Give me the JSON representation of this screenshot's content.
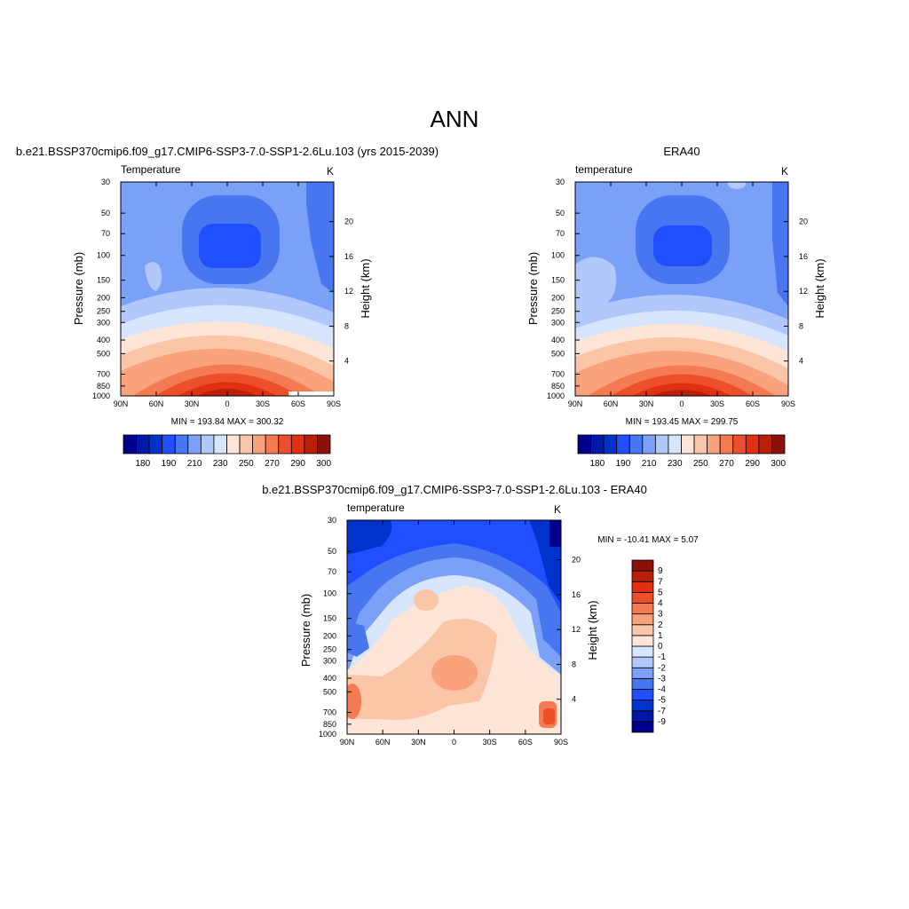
{
  "figure": {
    "title": "ANN"
  },
  "colors": {
    "temp_levels": [
      "#00008c",
      "#0018a8",
      "#0033cc",
      "#1f4fff",
      "#4876f0",
      "#7aa0f7",
      "#b0c8fb",
      "#d8e6fd",
      "#fde6d8",
      "#fbc6a8",
      "#f9a27c",
      "#f47a52",
      "#ee4f2b",
      "#e0300f",
      "#b8200a",
      "#8a1008"
    ],
    "diff_levels": [
      "#00008c",
      "#0018a8",
      "#0033cc",
      "#1f4fff",
      "#4876f0",
      "#7aa0f7",
      "#b0c8fb",
      "#d8e6fd",
      "#fde6d8",
      "#fbc6a8",
      "#f9a27c",
      "#f47a52",
      "#ee4f2b",
      "#e0300f",
      "#b8200a",
      "#8a1008"
    ]
  },
  "chart_data": [
    {
      "type": "heatmap",
      "id": "model",
      "title": "b.e21.BSSP370cmip6.f09_g17.CMIP6-SSP3-7.0-SSP1-2.6Lu.103 (yrs 2015-2039)",
      "variable_label": "Temperature",
      "units_label": "K",
      "xlabel": "",
      "ylabel": "Pressure (mb)",
      "y2label": "Height (km)",
      "x_ticks": [
        "90N",
        "60N",
        "30N",
        "0",
        "30S",
        "60S",
        "90S"
      ],
      "x_values": [
        90,
        60,
        30,
        0,
        -30,
        -60,
        -90
      ],
      "y_ticks": [
        30,
        50,
        70,
        100,
        150,
        200,
        250,
        300,
        400,
        500,
        700,
        850,
        1000
      ],
      "y2_ticks": [
        20,
        16,
        12,
        8,
        4
      ],
      "ylim": [
        30,
        1000
      ],
      "stats": "MIN = 193.84  MAX = 300.32",
      "min": 193.84,
      "max": 300.32,
      "colorbar_labels": [
        "180",
        "190",
        "210",
        "230",
        "250",
        "270",
        "290",
        "300"
      ],
      "colorbar_orientation": "horizontal"
    },
    {
      "type": "heatmap",
      "id": "obs",
      "title": "ERA40",
      "variable_label": "temperature",
      "units_label": "K",
      "xlabel": "",
      "ylabel": "Pressure (mb)",
      "y2label": "Height (km)",
      "x_ticks": [
        "90N",
        "60N",
        "30N",
        "0",
        "30S",
        "60S",
        "90S"
      ],
      "x_values": [
        90,
        60,
        30,
        0,
        -30,
        -60,
        -90
      ],
      "y_ticks": [
        30,
        50,
        70,
        100,
        150,
        200,
        250,
        300,
        400,
        500,
        700,
        850,
        1000
      ],
      "y2_ticks": [
        20,
        16,
        12,
        8,
        4
      ],
      "ylim": [
        30,
        1000
      ],
      "stats": "MIN = 193.45  MAX = 299.75",
      "min": 193.45,
      "max": 299.75,
      "colorbar_labels": [
        "180",
        "190",
        "210",
        "230",
        "250",
        "270",
        "290",
        "300"
      ],
      "colorbar_orientation": "horizontal"
    },
    {
      "type": "heatmap",
      "id": "diff",
      "title": "b.e21.BSSP370cmip6.f09_g17.CMIP6-SSP3-7.0-SSP1-2.6Lu.103 - ERA40",
      "variable_label": "temperature",
      "units_label": "K",
      "xlabel": "",
      "ylabel": "Pressure (mb)",
      "y2label": "Height (km)",
      "x_ticks": [
        "90N",
        "60N",
        "30N",
        "0",
        "30S",
        "60S",
        "90S"
      ],
      "x_values": [
        90,
        60,
        30,
        0,
        -30,
        -60,
        -90
      ],
      "y_ticks": [
        30,
        50,
        70,
        100,
        150,
        200,
        250,
        300,
        400,
        500,
        700,
        850,
        1000
      ],
      "y2_ticks": [
        20,
        16,
        12,
        8,
        4
      ],
      "ylim": [
        30,
        1000
      ],
      "stats": "MIN = -10.41  MAX =   5.07",
      "min": -10.41,
      "max": 5.07,
      "colorbar_labels": [
        "9",
        "7",
        "5",
        "4",
        "3",
        "2",
        "1",
        "0",
        "-1",
        "-2",
        "-3",
        "-4",
        "-5",
        "-7",
        "-9"
      ],
      "colorbar_orientation": "vertical"
    }
  ]
}
